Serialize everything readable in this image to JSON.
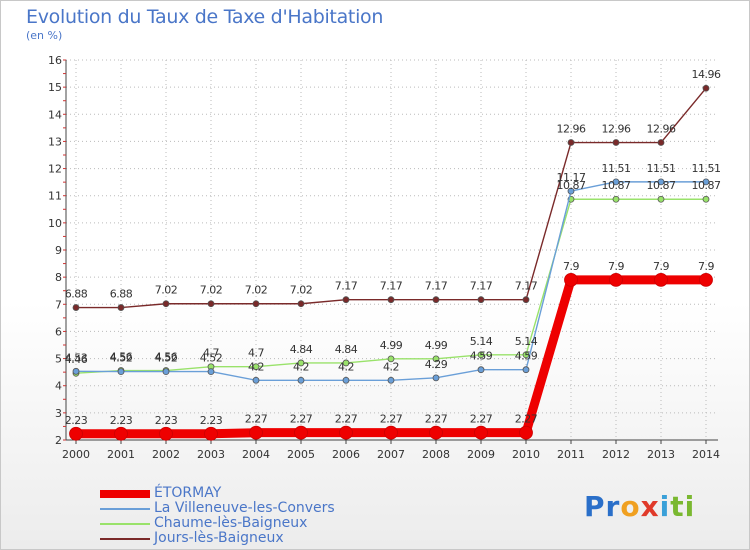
{
  "header": {
    "title": "Evolution du Taux de Taxe d'Habitation",
    "units": "(en %)"
  },
  "logo": {
    "text": "Proxiti",
    "letters": [
      {
        "ch": "P",
        "color": "#2a6fc9"
      },
      {
        "ch": "r",
        "color": "#2a6fc9"
      },
      {
        "ch": "o",
        "color": "#f0a020"
      },
      {
        "ch": "x",
        "color": "#e03a2a"
      },
      {
        "ch": "i",
        "color": "#3aa0d8"
      },
      {
        "ch": "t",
        "color": "#7ab830"
      },
      {
        "ch": "i",
        "color": "#7ab830"
      }
    ]
  },
  "chart_data": {
    "type": "line",
    "title": "Evolution du Taux de Taxe d'Habitation",
    "ylabel": "(en %)",
    "xlabel": "",
    "x": [
      "2000",
      "2001",
      "2002",
      "2003",
      "2004",
      "2005",
      "2006",
      "2007",
      "2008",
      "2009",
      "2010",
      "2011",
      "2012",
      "2013",
      "2014"
    ],
    "ylim": [
      2,
      16
    ],
    "yticks": [
      2,
      3,
      4,
      5,
      6,
      7,
      8,
      9,
      10,
      11,
      12,
      13,
      14,
      15,
      16
    ],
    "grid": true,
    "legend_position": "bottom-left",
    "series": [
      {
        "name": "ÉTORMAY",
        "color": "#ee0000",
        "values": [
          2.23,
          2.23,
          2.23,
          2.23,
          2.27,
          2.27,
          2.27,
          2.27,
          2.27,
          2.27,
          2.27,
          7.9,
          7.9,
          7.9,
          7.9
        ],
        "labels": [
          "2.23",
          "2.23",
          "2.23",
          "2.23",
          "2.27",
          "2.27",
          "2.27",
          "2.27",
          "2.27",
          "2.27",
          "2.27",
          "7.9",
          "7.9",
          "7.9",
          "7.9"
        ]
      },
      {
        "name": "La Villeneuve-les-Convers",
        "color": "#6a9fd8",
        "values": [
          4.53,
          4.52,
          4.52,
          4.52,
          4.2,
          4.2,
          4.2,
          4.2,
          4.29,
          4.59,
          4.59,
          11.17,
          11.51,
          11.51,
          11.51
        ],
        "labels": [
          "4.53",
          "4.52",
          "4.52",
          "4.52",
          "4.2",
          "4.2",
          "4.2",
          "4.2",
          "4.29",
          "4.59",
          "4.59",
          "11.17",
          "11.51",
          "11.51",
          "11.51"
        ]
      },
      {
        "name": "Chaume-lès-Baigneux",
        "color": "#99e26a",
        "values": [
          4.46,
          4.56,
          4.56,
          4.7,
          4.7,
          4.84,
          4.84,
          4.99,
          4.99,
          5.14,
          5.14,
          10.87,
          10.87,
          10.87,
          10.87
        ],
        "labels": [
          "4.46",
          "4.56",
          "4.56",
          "4.7",
          "4.7",
          "4.84",
          "4.84",
          "4.99",
          "4.99",
          "5.14",
          "5.14",
          "10.87",
          "10.87",
          "10.87",
          "10.87"
        ]
      },
      {
        "name": "Jours-lès-Baigneux",
        "color": "#7a2a2a",
        "values": [
          6.88,
          6.88,
          7.02,
          7.02,
          7.02,
          7.02,
          7.17,
          7.17,
          7.17,
          7.17,
          7.17,
          12.96,
          12.96,
          12.96,
          14.96
        ],
        "labels": [
          "6.88",
          "6.88",
          "7.02",
          "7.02",
          "7.02",
          "7.02",
          "7.17",
          "7.17",
          "7.17",
          "7.17",
          "7.17",
          "12.96",
          "12.96",
          "12.96",
          "14.96"
        ]
      }
    ]
  }
}
